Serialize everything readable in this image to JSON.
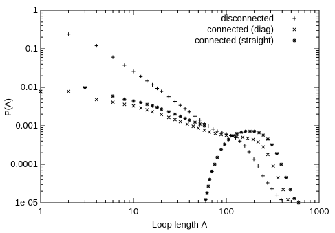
{
  "chart_data": {
    "type": "scatter",
    "xscale": "log",
    "yscale": "log",
    "xlim": [
      1,
      1000
    ],
    "ylim": [
      1e-05,
      1
    ],
    "grid": false,
    "legend_position": "top-right",
    "xlabel": "Loop length Λ",
    "ylabel": "P(Λ)",
    "x_ticks": [
      {
        "value": 1,
        "label": "1"
      },
      {
        "value": 10,
        "label": "10"
      },
      {
        "value": 100,
        "label": "100"
      },
      {
        "value": 1000,
        "label": "1000"
      }
    ],
    "y_ticks": [
      {
        "value": 1,
        "label": "1"
      },
      {
        "value": 0.1,
        "label": "0.1"
      },
      {
        "value": 0.01,
        "label": "0.01"
      },
      {
        "value": 0.001,
        "label": "0.001"
      },
      {
        "value": 0.0001,
        "label": "0.0001"
      },
      {
        "value": 1e-05,
        "label": "1e-05"
      }
    ],
    "series": [
      {
        "name": "disconnected",
        "marker": "plus",
        "color": "#000000",
        "x": [
          2,
          4,
          6,
          8,
          10,
          12,
          14,
          16,
          18,
          20,
          24,
          28,
          32,
          36,
          40,
          46,
          52,
          58,
          64,
          72,
          80,
          90,
          100,
          112,
          126,
          140,
          158,
          176,
          198,
          220,
          248,
          278,
          310,
          350,
          390
        ],
        "y": [
          0.24,
          0.12,
          0.0607,
          0.0375,
          0.0259,
          0.019,
          0.0146,
          0.0116,
          0.0094,
          0.0078,
          0.0057,
          0.0043,
          0.0034,
          0.0028,
          0.0023,
          0.00176,
          0.00141,
          0.00115,
          0.00098,
          0.00082,
          0.00072,
          0.00066,
          0.00061,
          0.00055,
          0.00049,
          0.0004,
          0.0003,
          0.00021,
          0.000135,
          9e-05,
          5e-05,
          3.3e-05,
          2.3e-05,
          1.6e-05,
          1.2e-05
        ]
      },
      {
        "name": "connected (diag)",
        "marker": "x",
        "color": "#000000",
        "x": [
          1,
          2,
          4,
          6,
          8,
          10,
          12,
          14,
          16,
          20,
          24,
          28,
          32,
          38,
          44,
          50,
          58,
          66,
          76,
          88,
          100,
          114,
          130,
          150,
          170,
          195,
          220,
          250,
          280,
          320,
          360,
          410,
          460
        ],
        "y": [
          0.0078,
          0.0078,
          0.0048,
          0.0041,
          0.0036,
          0.0033,
          0.0029,
          0.0026,
          0.0023,
          0.00195,
          0.00165,
          0.00145,
          0.00128,
          0.0011,
          0.00097,
          0.00087,
          0.00077,
          0.00069,
          0.00063,
          0.00059,
          0.00056,
          0.00054,
          0.00052,
          0.0005,
          0.00047,
          0.00044,
          0.00038,
          0.00028,
          0.00018,
          9e-05,
          4.5e-05,
          2.2e-05,
          1.2e-05
        ]
      },
      {
        "name": "connected (straight)",
        "marker": "asterisk",
        "color": "#000000",
        "x": [
          3,
          6,
          8,
          10,
          12,
          14,
          16,
          18,
          20,
          24,
          28,
          32,
          36,
          40,
          46,
          52,
          58,
          60,
          62,
          64,
          66,
          70,
          75,
          80,
          88,
          96,
          106,
          118,
          130,
          145,
          160,
          180,
          200,
          225,
          250,
          280,
          310,
          350,
          390,
          440,
          490,
          540,
          600
        ],
        "y": [
          0.0098,
          0.0059,
          0.0049,
          0.0044,
          0.004,
          0.0036,
          0.0033,
          0.003,
          0.0027,
          0.0023,
          0.002,
          0.00175,
          0.00155,
          0.0014,
          0.00124,
          0.00111,
          0.001,
          1.2e-05,
          1.8e-05,
          2.7e-05,
          4e-05,
          6.5e-05,
          0.0001,
          0.00015,
          0.00024,
          0.00033,
          0.00044,
          0.00055,
          0.00063,
          0.00068,
          0.00071,
          0.00072,
          0.00071,
          0.00066,
          0.00057,
          0.00045,
          0.00032,
          0.00019,
          0.0001,
          4.5e-05,
          2.2e-05,
          1.3e-05,
          1e-05
        ]
      }
    ]
  }
}
